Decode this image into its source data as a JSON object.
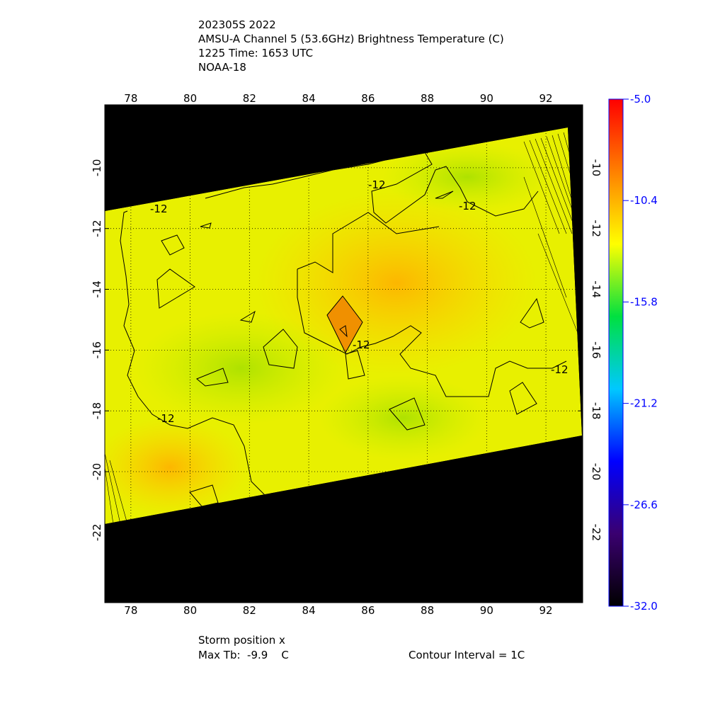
{
  "chart_data": {
    "type": "map",
    "title": [
      "202305S 2022",
      "AMSU-A Channel 5 (53.6GHz) Brightness Temperature (C)",
      "1225 Time: 1653 UTC",
      "NOAA-18"
    ],
    "xlim": [
      77.12,
      93.24
    ],
    "xticks": [
      78,
      80,
      82,
      84,
      86,
      88,
      90,
      92
    ],
    "ylim": [
      -24.31,
      -7.93
    ],
    "yticks": [
      -10,
      -12,
      -14,
      -16,
      -18,
      -20,
      -22
    ],
    "grid": true,
    "clim": [
      -32,
      -5
    ],
    "cticks": [
      {
        "value": -5,
        "label": "-5.0"
      },
      {
        "value": -10.4,
        "label": "-10.4"
      },
      {
        "value": -15.8,
        "label": "-15.8"
      },
      {
        "value": -21.2,
        "label": "-21.2"
      },
      {
        "value": -26.6,
        "label": "-26.6"
      },
      {
        "value": -32,
        "label": "-32.0"
      }
    ],
    "colormap": [
      "#000000",
      "#3a0070",
      "#0000ff",
      "#00c8ff",
      "#00e040",
      "#ffff00",
      "#ff8000",
      "#ff0000"
    ],
    "contour_labels": [
      "-12",
      "-12",
      "-12",
      "-12",
      "-12",
      "-12"
    ],
    "footer": [
      "Storm position x",
      "Max Tb:  -9.9    C",
      "Contour Interval = 1C"
    ]
  }
}
